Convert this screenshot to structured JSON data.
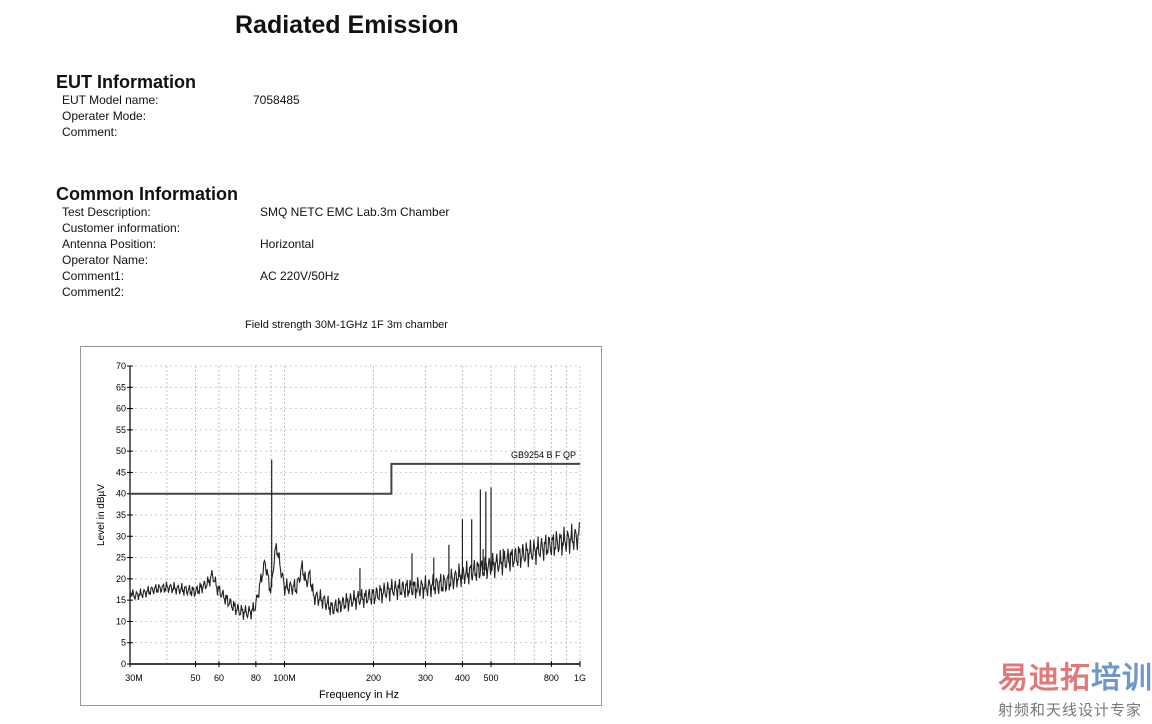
{
  "title": "Radiated Emission",
  "eut": {
    "heading": "EUT Information",
    "rows": [
      {
        "label": "EUT Model name:",
        "value": "7058485"
      },
      {
        "label": "Operater Mode:",
        "value": ""
      },
      {
        "label": "Comment:",
        "value": ""
      }
    ]
  },
  "common": {
    "heading": "Common Information",
    "rows": [
      {
        "label": "Test Description:",
        "value": "SMQ NETC EMC Lab.3m Chamber"
      },
      {
        "label": "Customer information:",
        "value": ""
      },
      {
        "label": "Antenna Position:",
        "value": "Horizontal"
      },
      {
        "label": "Operator Name:",
        "value": ""
      },
      {
        "label": "Comment1:",
        "value": "AC 220V/50Hz"
      },
      {
        "label": "Comment2:",
        "value": ""
      }
    ]
  },
  "watermark": {
    "brand_red": "易迪拓",
    "brand_blue": "培训",
    "tagline": "射频和天线设计专家",
    "red": "#e07a7a",
    "blue": "#6f98c8"
  },
  "chart_data": {
    "type": "line",
    "title": "Field strength 30M-1GHz 1F 3m chamber",
    "xlabel": "Frequency in Hz",
    "ylabel": "Level in dBµV",
    "xscale": "log",
    "xlim": [
      30,
      1000
    ],
    "ylim": [
      0,
      70
    ],
    "xticks": [
      {
        "v": 30,
        "t": "30M"
      },
      {
        "v": 50,
        "t": "50"
      },
      {
        "v": 60,
        "t": "60"
      },
      {
        "v": 80,
        "t": "80"
      },
      {
        "v": 100,
        "t": "100M"
      },
      {
        "v": 200,
        "t": "200"
      },
      {
        "v": 300,
        "t": "300"
      },
      {
        "v": 400,
        "t": "400"
      },
      {
        "v": 500,
        "t": "500"
      },
      {
        "v": 800,
        "t": "800"
      },
      {
        "v": 1000,
        "t": "1G"
      }
    ],
    "yticks": [
      0,
      5,
      10,
      15,
      20,
      25,
      30,
      35,
      40,
      45,
      50,
      55,
      60,
      65,
      70
    ],
    "grid": true,
    "limit": {
      "name": "GB9254 B F QP",
      "points": [
        [
          30,
          40
        ],
        [
          230,
          40
        ],
        [
          230,
          47
        ],
        [
          1000,
          47
        ]
      ]
    },
    "trace": [
      [
        30,
        17
      ],
      [
        31,
        16
      ],
      [
        33,
        16.5
      ],
      [
        36,
        17.5
      ],
      [
        40,
        18
      ],
      [
        45,
        17.5
      ],
      [
        50,
        17
      ],
      [
        55,
        19
      ],
      [
        57,
        21
      ],
      [
        59,
        18
      ],
      [
        62,
        16
      ],
      [
        66,
        14
      ],
      [
        70,
        12.5
      ],
      [
        75,
        12
      ],
      [
        78,
        12.5
      ],
      [
        80,
        14
      ],
      [
        84,
        21
      ],
      [
        86,
        24
      ],
      [
        88,
        20
      ],
      [
        90,
        17
      ],
      [
        92,
        24
      ],
      [
        94,
        28
      ],
      [
        96,
        24
      ],
      [
        100,
        18
      ],
      [
        105,
        18
      ],
      [
        110,
        18
      ],
      [
        115,
        23
      ],
      [
        118,
        19
      ],
      [
        122,
        21
      ],
      [
        125,
        16
      ],
      [
        135,
        15
      ],
      [
        145,
        13
      ],
      [
        155,
        14
      ],
      [
        170,
        15
      ],
      [
        200,
        16
      ],
      [
        230,
        17.5
      ],
      [
        300,
        18
      ],
      [
        350,
        19
      ],
      [
        400,
        21
      ],
      [
        500,
        23
      ],
      [
        600,
        25
      ],
      [
        700,
        26.5
      ],
      [
        800,
        28
      ],
      [
        900,
        29
      ],
      [
        1000,
        30
      ]
    ],
    "spikes": [
      [
        90.5,
        48
      ],
      [
        180,
        22.5
      ],
      [
        270,
        26
      ],
      [
        320,
        25
      ],
      [
        360,
        28
      ],
      [
        400,
        34
      ],
      [
        430,
        34
      ],
      [
        460,
        41
      ],
      [
        470,
        27
      ],
      [
        480,
        40.5
      ],
      [
        500,
        41.5
      ],
      [
        550,
        27
      ],
      [
        580,
        26
      ]
    ]
  }
}
